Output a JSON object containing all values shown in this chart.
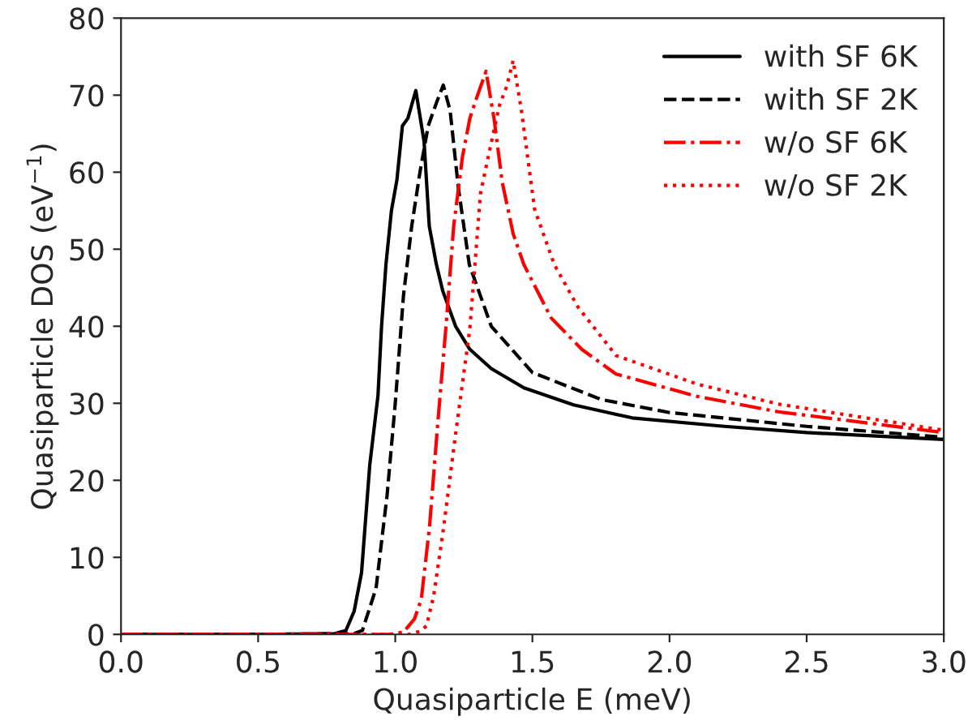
{
  "chart_data": {
    "type": "line",
    "xlabel": "Quasiparticle E (meV)",
    "ylabel": "Quasiparticle DOS (eV$^{−1}$)",
    "xlim": [
      0,
      3
    ],
    "ylim": [
      0,
      80
    ],
    "xticks": [
      {
        "value": 0,
        "label": "0.0"
      },
      {
        "value": 0.5,
        "label": "0.5"
      },
      {
        "value": 1,
        "label": "1.0"
      },
      {
        "value": 1.5,
        "label": "1.5"
      },
      {
        "value": 2,
        "label": "2.0"
      },
      {
        "value": 2.5,
        "label": "2.5"
      },
      {
        "value": 3,
        "label": "3.0"
      }
    ],
    "yticks": [
      0,
      10,
      20,
      30,
      40,
      50,
      60,
      70,
      80
    ],
    "grid": false,
    "legend": "top right",
    "series": [
      {
        "name": "with SF 6K",
        "color": "#000000",
        "line_style": "solid",
        "x": [
          0,
          0.5,
          0.78,
          0.82,
          0.85,
          0.877,
          0.907,
          0.937,
          0.95,
          0.966,
          0.986,
          1.006,
          1.026,
          1.046,
          1.075,
          1.105,
          1.124,
          1.15,
          1.173,
          1.22,
          1.272,
          1.35,
          1.469,
          1.65,
          1.864,
          2.2,
          2.5,
          3.0
        ],
        "values": [
          0,
          0,
          0.1,
          0.5,
          3,
          8,
          22,
          31,
          40,
          48,
          55,
          59,
          66,
          67,
          70.6,
          64,
          53,
          48,
          44.6,
          40,
          37,
          34.5,
          32,
          29.8,
          28.1,
          27,
          26.2,
          25.3
        ]
      },
      {
        "name": "with SF 2K",
        "color": "#000000",
        "line_style": "dashed",
        "x": [
          0,
          0.5,
          0.85,
          0.88,
          0.93,
          0.97,
          1.0,
          1.03,
          1.06,
          1.09,
          1.12,
          1.15,
          1.175,
          1.2,
          1.23,
          1.27,
          1.35,
          1.5,
          1.75,
          2.0,
          2.5,
          3.0
        ],
        "values": [
          0,
          0,
          0.1,
          0.5,
          6,
          18,
          30,
          44,
          53,
          60,
          66,
          69,
          71.3,
          68,
          58,
          48,
          40,
          34,
          30.5,
          28.8,
          27,
          25.6
        ]
      },
      {
        "name": "w/o SF 6K",
        "color": "#ff0000",
        "line_style": "dashdot",
        "x": [
          0,
          0.5,
          0.98,
          1.03,
          1.07,
          1.095,
          1.125,
          1.154,
          1.185,
          1.213,
          1.245,
          1.272,
          1.3,
          1.331,
          1.36,
          1.39,
          1.43,
          1.469,
          1.568,
          1.68,
          1.805,
          2.1,
          2.396,
          3.0
        ],
        "values": [
          0,
          0,
          0,
          0.3,
          2,
          4.6,
          14,
          27,
          40,
          53,
          62,
          67,
          70,
          73.1,
          67,
          58.7,
          52,
          48,
          41.1,
          37,
          33.8,
          30.9,
          28.9,
          26.2
        ]
      },
      {
        "name": "w/o SF 2K",
        "color": "#ff0000",
        "line_style": "dotted",
        "x": [
          0,
          0.5,
          1.05,
          1.09,
          1.114,
          1.14,
          1.173,
          1.22,
          1.272,
          1.311,
          1.345,
          1.38,
          1.405,
          1.43,
          1.46,
          1.508,
          1.58,
          1.666,
          1.805,
          2.1,
          2.396,
          3.0
        ],
        "values": [
          0,
          0,
          0,
          0.4,
          1.1,
          5,
          13,
          26,
          39.7,
          57.3,
          63,
          68.7,
          71,
          74.5,
          68,
          55.2,
          48,
          42.5,
          36.2,
          32.5,
          29.9,
          26.5
        ]
      }
    ]
  }
}
